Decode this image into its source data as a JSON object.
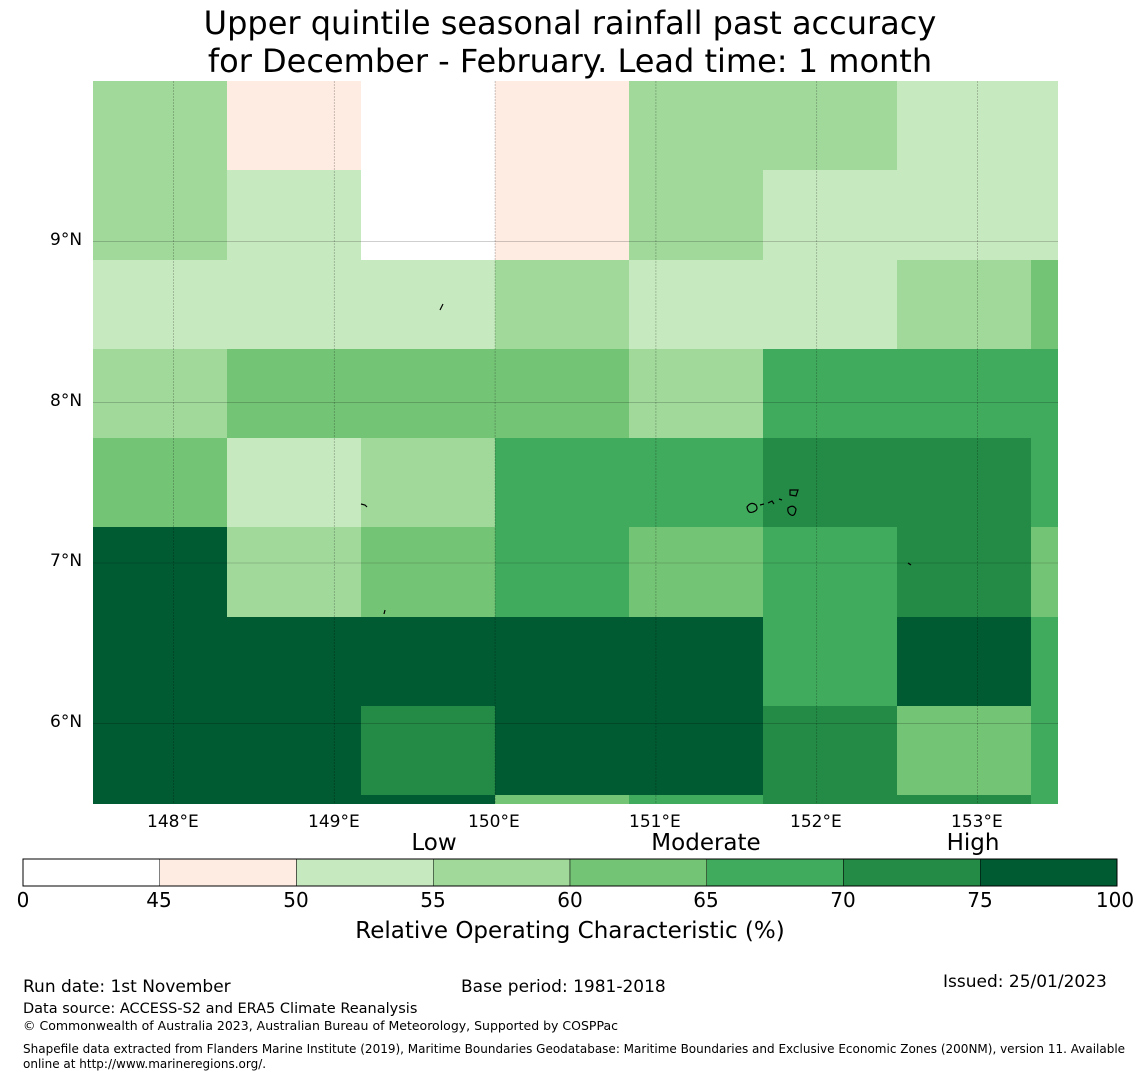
{
  "title": {
    "line1": "Upper quintile seasonal rainfall past accuracy",
    "line2": "for December - February. Lead time: 1 month"
  },
  "map": {
    "lat_labels": [
      "9°N",
      "8°N",
      "7°N",
      "6°N"
    ],
    "lon_labels": [
      "148°E",
      "149°E",
      "150°E",
      "151°E",
      "152°E",
      "153°E"
    ],
    "lon_range": [
      147.5,
      153.5
    ],
    "lat_range": [
      5.5,
      10.0
    ],
    "grid_lon_edges": [
      147.5,
      148.333,
      149.167,
      150.0,
      150.833,
      151.667,
      152.5,
      153.333,
      153.5
    ],
    "grid_lat_edges": [
      10.0,
      9.444,
      8.889,
      8.333,
      7.778,
      7.222,
      6.667,
      6.111,
      5.556,
      5.5
    ],
    "cells": [
      [
        4,
        2,
        1,
        2,
        4,
        4,
        3,
        3
      ],
      [
        4,
        3,
        1,
        2,
        4,
        3,
        3,
        3
      ],
      [
        3,
        3,
        3,
        4,
        3,
        3,
        4,
        5
      ],
      [
        4,
        5,
        5,
        5,
        4,
        6,
        6,
        6
      ],
      [
        5,
        3,
        4,
        6,
        6,
        7,
        7,
        6
      ],
      [
        8,
        4,
        5,
        6,
        5,
        6,
        7,
        5
      ],
      [
        8,
        8,
        8,
        8,
        8,
        6,
        8,
        6
      ],
      [
        8,
        8,
        7,
        8,
        8,
        7,
        5,
        6
      ],
      [
        8,
        8,
        8,
        5,
        6,
        7,
        7,
        6
      ]
    ]
  },
  "colorbar": {
    "colors": [
      "#ffffff",
      "#feebe2",
      "#c7e9c0",
      "#a1d99b",
      "#74c476",
      "#41ab5d",
      "#238b45",
      "#005a32"
    ],
    "ticks": [
      "0",
      "45",
      "50",
      "55",
      "60",
      "65",
      "70",
      "75",
      "100"
    ],
    "categories": [
      "Low",
      "Moderate",
      "High"
    ],
    "title": "Relative Operating Characteristic (%)"
  },
  "footer": {
    "run_date": "Run date: 1st November",
    "base_period": "Base period: 1981-2018",
    "issued": "Issued: 25/01/2023",
    "data_source": "Data source: ACCESS-S2 and ERA5 Climate Reanalysis",
    "copyright": "© Commonwealth of Australia 2023, Australian Bureau of Meteorology, Supported by COSPPac",
    "shapefile_line1": "Shapefile data extracted from Flanders Marine Institute (2019), Maritime Boundaries Geodatabase: Maritime Boundaries and Exclusive Economic Zones (200NM), version 11. Available",
    "shapefile_line2": "online at http://www.marineregions.org/."
  }
}
